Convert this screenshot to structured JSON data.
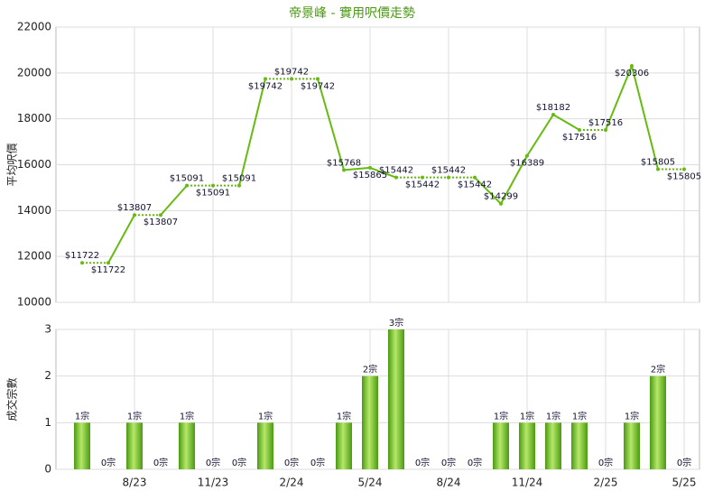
{
  "chart_data": [
    {
      "type": "line",
      "title": "帝景峰 - 實用呎價走勢",
      "y_label": "平均呎價",
      "color": "#66bb11",
      "categories": [
        null,
        null,
        "8/23",
        null,
        null,
        "11/23",
        null,
        null,
        "2/24",
        null,
        null,
        "5/24",
        null,
        null,
        "8/24",
        null,
        null,
        "11/24",
        null,
        null,
        "2/25",
        null,
        null,
        "5/25"
      ],
      "values": [
        11722,
        11722,
        13807,
        13807,
        15091,
        15091,
        15091,
        19742,
        19742,
        19742,
        15768,
        15865,
        15442,
        15442,
        15442,
        15442,
        14299,
        16389,
        18182,
        17516,
        17516,
        20306,
        15805,
        15805
      ],
      "value_labels": [
        "$11722",
        "$11722",
        "$13807",
        "$13807",
        "$15091",
        "$15091",
        "$15091",
        "$19742",
        "$19742",
        "$19742",
        "$15768",
        "$15865",
        "$15442",
        "$15442",
        "$15442",
        "$15442",
        "$14299",
        "$16389",
        "$18182",
        "$17516",
        "$17516",
        "$20306",
        "$15805",
        "$15805"
      ],
      "ylim": [
        10000,
        22000
      ],
      "yticks": [
        10000,
        12000,
        14000,
        16000,
        18000,
        20000,
        22000
      ],
      "grid": true
    },
    {
      "type": "bar",
      "y_label": "成交宗數",
      "color": "#66bb11",
      "categories": [
        null,
        null,
        "8/23",
        null,
        null,
        "11/23",
        null,
        null,
        "2/24",
        null,
        null,
        "5/24",
        null,
        null,
        "8/24",
        null,
        null,
        "11/24",
        null,
        null,
        "2/25",
        null,
        null,
        "5/25"
      ],
      "values": [
        1,
        0,
        1,
        0,
        1,
        0,
        0,
        1,
        0,
        0,
        1,
        2,
        3,
        0,
        0,
        0,
        1,
        1,
        1,
        1,
        0,
        1,
        2,
        0
      ],
      "value_labels": [
        "1宗",
        "0宗",
        "1宗",
        "0宗",
        "1宗",
        "0宗",
        "0宗",
        "1宗",
        "0宗",
        "0宗",
        "1宗",
        "2宗",
        "3宗",
        "0宗",
        "0宗",
        "0宗",
        "1宗",
        "1宗",
        "1宗",
        "1宗",
        "0宗",
        "1宗",
        "2宗",
        "0宗"
      ],
      "ylim": [
        0,
        3
      ],
      "yticks": [
        0,
        1,
        2,
        3
      ],
      "grid": true
    }
  ]
}
